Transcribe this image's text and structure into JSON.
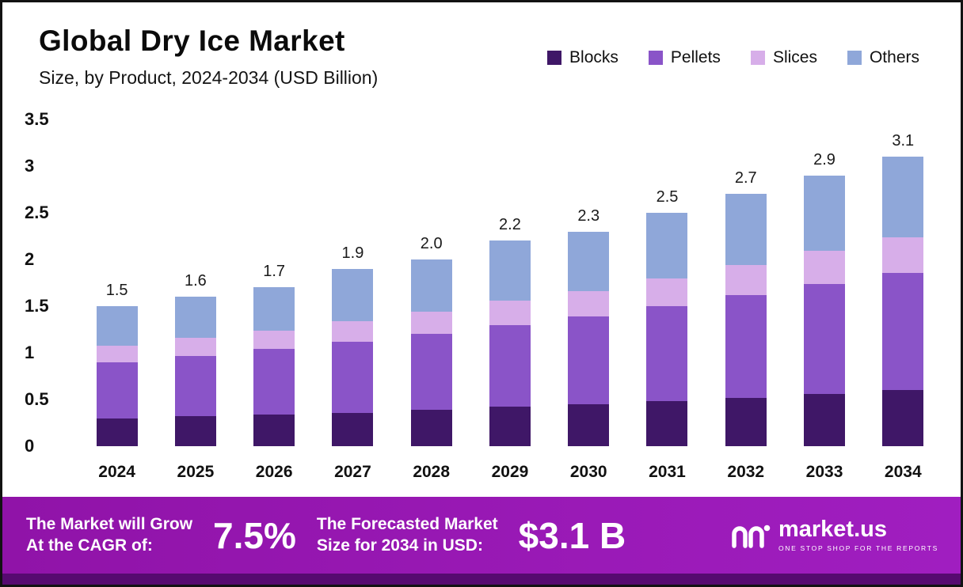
{
  "header": {
    "title": "Global Dry Ice Market",
    "subtitle": "Size, by Product, 2024-2034 (USD Billion)"
  },
  "chart_data": {
    "type": "bar",
    "stacked": true,
    "title": "Global Dry Ice Market Size, by Product, 2024-2034 (USD Billion)",
    "unit": "USD Billion",
    "categories": [
      "2024",
      "2025",
      "2026",
      "2027",
      "2028",
      "2029",
      "2030",
      "2031",
      "2032",
      "2033",
      "2034"
    ],
    "series": [
      {
        "name": "Blocks",
        "color": "#3f1767",
        "values": [
          0.3,
          0.32,
          0.34,
          0.36,
          0.39,
          0.42,
          0.45,
          0.48,
          0.52,
          0.56,
          0.6
        ]
      },
      {
        "name": "Pellets",
        "color": "#8a54c8",
        "values": [
          0.6,
          0.65,
          0.7,
          0.76,
          0.81,
          0.88,
          0.94,
          1.02,
          1.1,
          1.18,
          1.26
        ]
      },
      {
        "name": "Slices",
        "color": "#d7aee9",
        "values": [
          0.18,
          0.19,
          0.2,
          0.22,
          0.24,
          0.26,
          0.27,
          0.3,
          0.32,
          0.35,
          0.38
        ]
      },
      {
        "name": "Others",
        "color": "#8fa7d9",
        "values": [
          0.42,
          0.44,
          0.46,
          0.56,
          0.56,
          0.64,
          0.64,
          0.7,
          0.76,
          0.81,
          0.86
        ]
      }
    ],
    "totals": [
      "1.5",
      "1.6",
      "1.7",
      "1.9",
      "2.0",
      "2.2",
      "2.3",
      "2.5",
      "2.7",
      "2.9",
      "3.1"
    ],
    "ylim": [
      0,
      3.5
    ],
    "yticks": [
      0,
      0.5,
      1,
      1.5,
      2,
      2.5,
      3,
      3.5
    ],
    "ytick_labels": [
      "0",
      "0.5",
      "1",
      "1.5",
      "2",
      "2.5",
      "3",
      "3.5"
    ],
    "grid": false,
    "legend_position": "top-right"
  },
  "banner": {
    "background": "#9013a8",
    "background_right": "#a01ec0",
    "strip_color": "#560a70",
    "cagr_line1": "The Market will Grow",
    "cagr_line2": "At the CAGR of:",
    "cagr_value": "7.5%",
    "forecast_line1": "The Forecasted Market",
    "forecast_line2": "Size for 2034 in USD:",
    "forecast_value": "$3.1 B",
    "logo_text": "market.us",
    "logo_tagline": "ONE STOP SHOP FOR THE REPORTS",
    "logo_icon": "market-us-wave-icon"
  }
}
